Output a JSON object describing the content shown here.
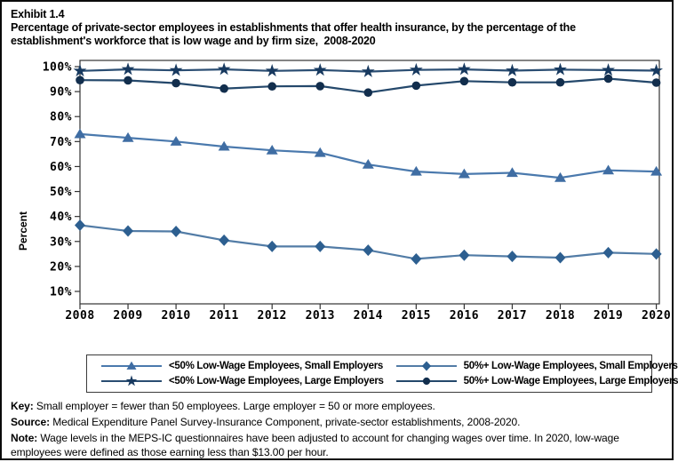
{
  "header": {
    "exhibit_label": "Exhibit 1.4",
    "title": "Percentage of private-sector employees in establishments that offer health insurance, by the percentage of the establishment's workforce that is low wage and by firm size,  2008-2020"
  },
  "chart_data": {
    "type": "line",
    "title": "Percentage of private-sector employees in establishments that offer health insurance, by the percentage of the establishment's workforce that is low wage and by firm size, 2008-2020",
    "xlabel": "",
    "ylabel": "Percent",
    "ylim": [
      10,
      100
    ],
    "grid": false,
    "legend_position": "bottom-box",
    "x": [
      2008,
      2009,
      2010,
      2011,
      2012,
      2013,
      2014,
      2015,
      2016,
      2017,
      2018,
      2019,
      2020
    ],
    "ytick_labels": [
      "10%",
      "20%",
      "30%",
      "40%",
      "50%",
      "60%",
      "70%",
      "80%",
      "90%",
      "100%"
    ],
    "series": [
      {
        "name": "<50% Low-Wage Employees, Small Employers",
        "marker": "triangle",
        "line_color": "#4a79ad",
        "marker_color": "#3f6da3",
        "values": [
          73.0,
          71.5,
          70.0,
          68.0,
          66.5,
          65.5,
          60.8,
          58.0,
          57.0,
          57.5,
          55.5,
          58.5,
          58.0
        ]
      },
      {
        "name": "<50% Low-Wage Employees, Large Employers",
        "marker": "star",
        "line_color": "#2a4d72",
        "marker_color": "#17395f",
        "values": [
          98.3,
          98.9,
          98.5,
          98.9,
          98.3,
          98.6,
          98.0,
          98.7,
          98.9,
          98.4,
          98.8,
          98.6,
          98.4
        ]
      },
      {
        "name": "50%+ Low-Wage Employees, Small Employers",
        "marker": "diamond",
        "line_color": "#527ca6",
        "marker_color": "#2d5f90",
        "values": [
          36.5,
          34.2,
          34.0,
          30.5,
          28.0,
          28.0,
          26.5,
          23.0,
          24.5,
          24.0,
          23.5,
          25.5,
          25.0
        ]
      },
      {
        "name": "50%+ Low-Wage Employees, Large Employers",
        "marker": "circle",
        "line_color": "#24486b",
        "marker_color": "#122e4d",
        "values": [
          94.6,
          94.5,
          93.4,
          91.2,
          92.1,
          92.2,
          89.6,
          92.4,
          94.2,
          93.7,
          93.7,
          95.2,
          93.6
        ]
      }
    ]
  },
  "footer": {
    "key_label": "Key:",
    "key_text": " Small employer = fewer than 50 employees. Large employer = 50 or more employees.",
    "source_label": "Source:",
    "source_text": " Medical Expenditure Panel Survey-Insurance Component, private-sector establishments, 2008-2020.",
    "note_label": "Note:",
    "note_text": " Wage levels in the MEPS-IC questionnaires have been adjusted to account for changing wages over time. In 2020, low-wage employees were defined as those earning less than $13.00 per hour."
  }
}
